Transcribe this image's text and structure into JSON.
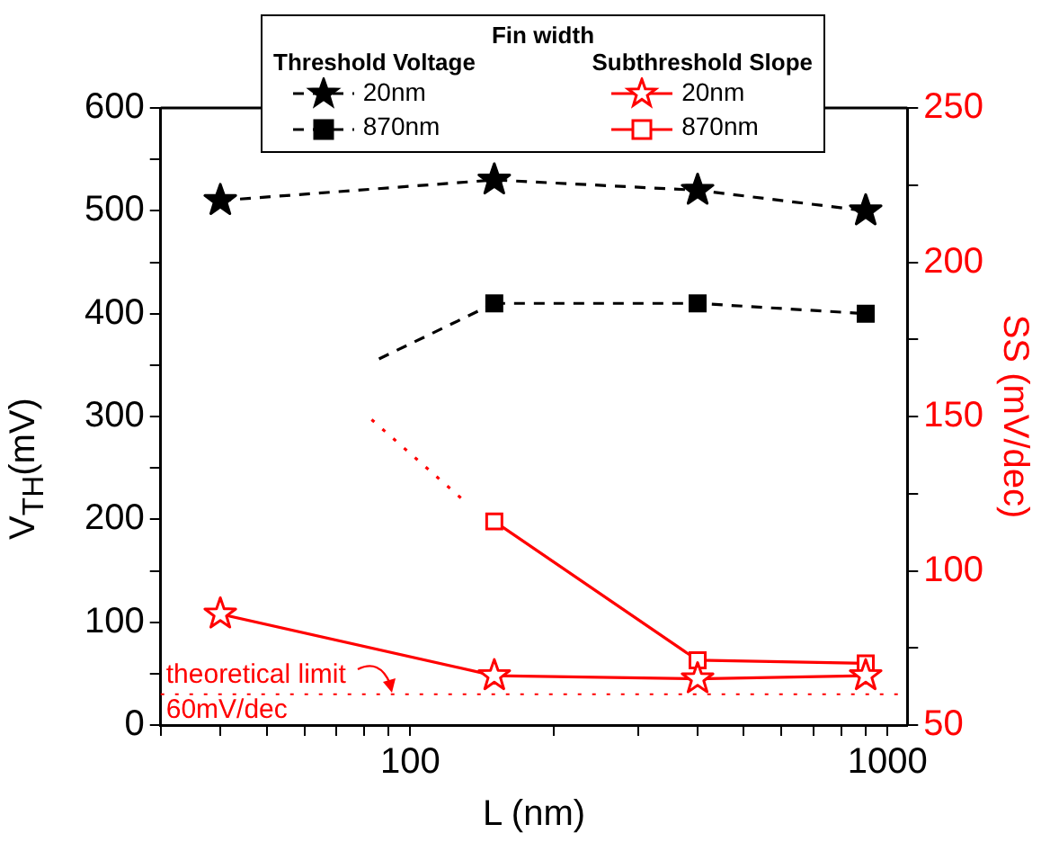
{
  "chart_data": {
    "type": "line",
    "legend_title": "Fin width",
    "xlabel": "L (nm)",
    "ylabel": "V$_{TH}$(mV)",
    "y2label": "SS (mV/dec)",
    "log": "x",
    "grid": false,
    "legend": "top",
    "xlim": [
      30,
      1100
    ],
    "xticks": [
      {
        "value": 30,
        "label": null
      },
      {
        "value": 40,
        "label": null
      },
      {
        "value": 50,
        "label": null
      },
      {
        "value": 60,
        "label": null
      },
      {
        "value": 70,
        "label": null
      },
      {
        "value": 80,
        "label": null
      },
      {
        "value": 90,
        "label": null
      },
      100,
      {
        "value": 200,
        "label": null
      },
      {
        "value": 300,
        "label": null
      },
      {
        "value": 400,
        "label": null
      },
      {
        "value": 500,
        "label": null
      },
      {
        "value": 600,
        "label": null
      },
      {
        "value": 700,
        "label": null
      },
      {
        "value": 800,
        "label": null
      },
      {
        "value": 900,
        "label": null
      },
      1000
    ],
    "ylim": [
      0,
      600
    ],
    "yticks": [
      0,
      {
        "value": 50,
        "label": null
      },
      100,
      {
        "value": 150,
        "label": null
      },
      200,
      {
        "value": 250,
        "label": null
      },
      300,
      {
        "value": 350,
        "label": null
      },
      400,
      {
        "value": 450,
        "label": null
      },
      500,
      {
        "value": 550,
        "label": null
      },
      600
    ],
    "y2lim": [
      50,
      250
    ],
    "y2ticks": [
      50,
      {
        "value": 75,
        "label": null
      },
      100,
      {
        "value": 125,
        "label": null
      },
      150,
      {
        "value": 175,
        "label": null
      },
      200,
      {
        "value": 225,
        "label": null
      },
      250
    ],
    "annotations": [
      "Threshold Voltage",
      "Subthreshold Slope",
      "60mV/dec"
    ],
    "ref_lines": [
      {
        "axis": "y2",
        "value": 60,
        "label": "theoretical limit",
        "color": "#ff0000",
        "line_style": "dotted"
      }
    ],
    "x": [
      40,
      150,
      400,
      900
    ],
    "series": [
      {
        "name": "20nm",
        "color": "#000000",
        "marker": "star",
        "line_style": "dashed",
        "values": [
          510,
          530,
          520,
          500
        ]
      },
      {
        "name": "870nm",
        "color": "#000000",
        "marker": "square",
        "line_style": "dashed",
        "x": [
          150,
          400,
          900
        ],
        "values": [
          410,
          410,
          400
        ]
      },
      {
        "color": "#000000",
        "marker": "none",
        "line_style": "dashed",
        "x": [
          86,
          150
        ],
        "values": [
          356,
          410
        ]
      },
      {
        "name": "20nm",
        "color": "#ff0000",
        "marker": "star",
        "line_style": "solid",
        "axis": "y2",
        "values": [
          86,
          66,
          65,
          66
        ]
      },
      {
        "name": "870nm",
        "color": "#ff0000",
        "marker": "square",
        "line_style": "solid",
        "axis": "y2",
        "x": [
          150,
          400,
          900
        ],
        "values": [
          116,
          71,
          70
        ]
      },
      {
        "color": "#ff0000",
        "marker": "none",
        "line_style": "dotted",
        "axis": "y2",
        "x": [
          83,
          129
        ],
        "values": [
          149,
          123
        ]
      }
    ]
  }
}
